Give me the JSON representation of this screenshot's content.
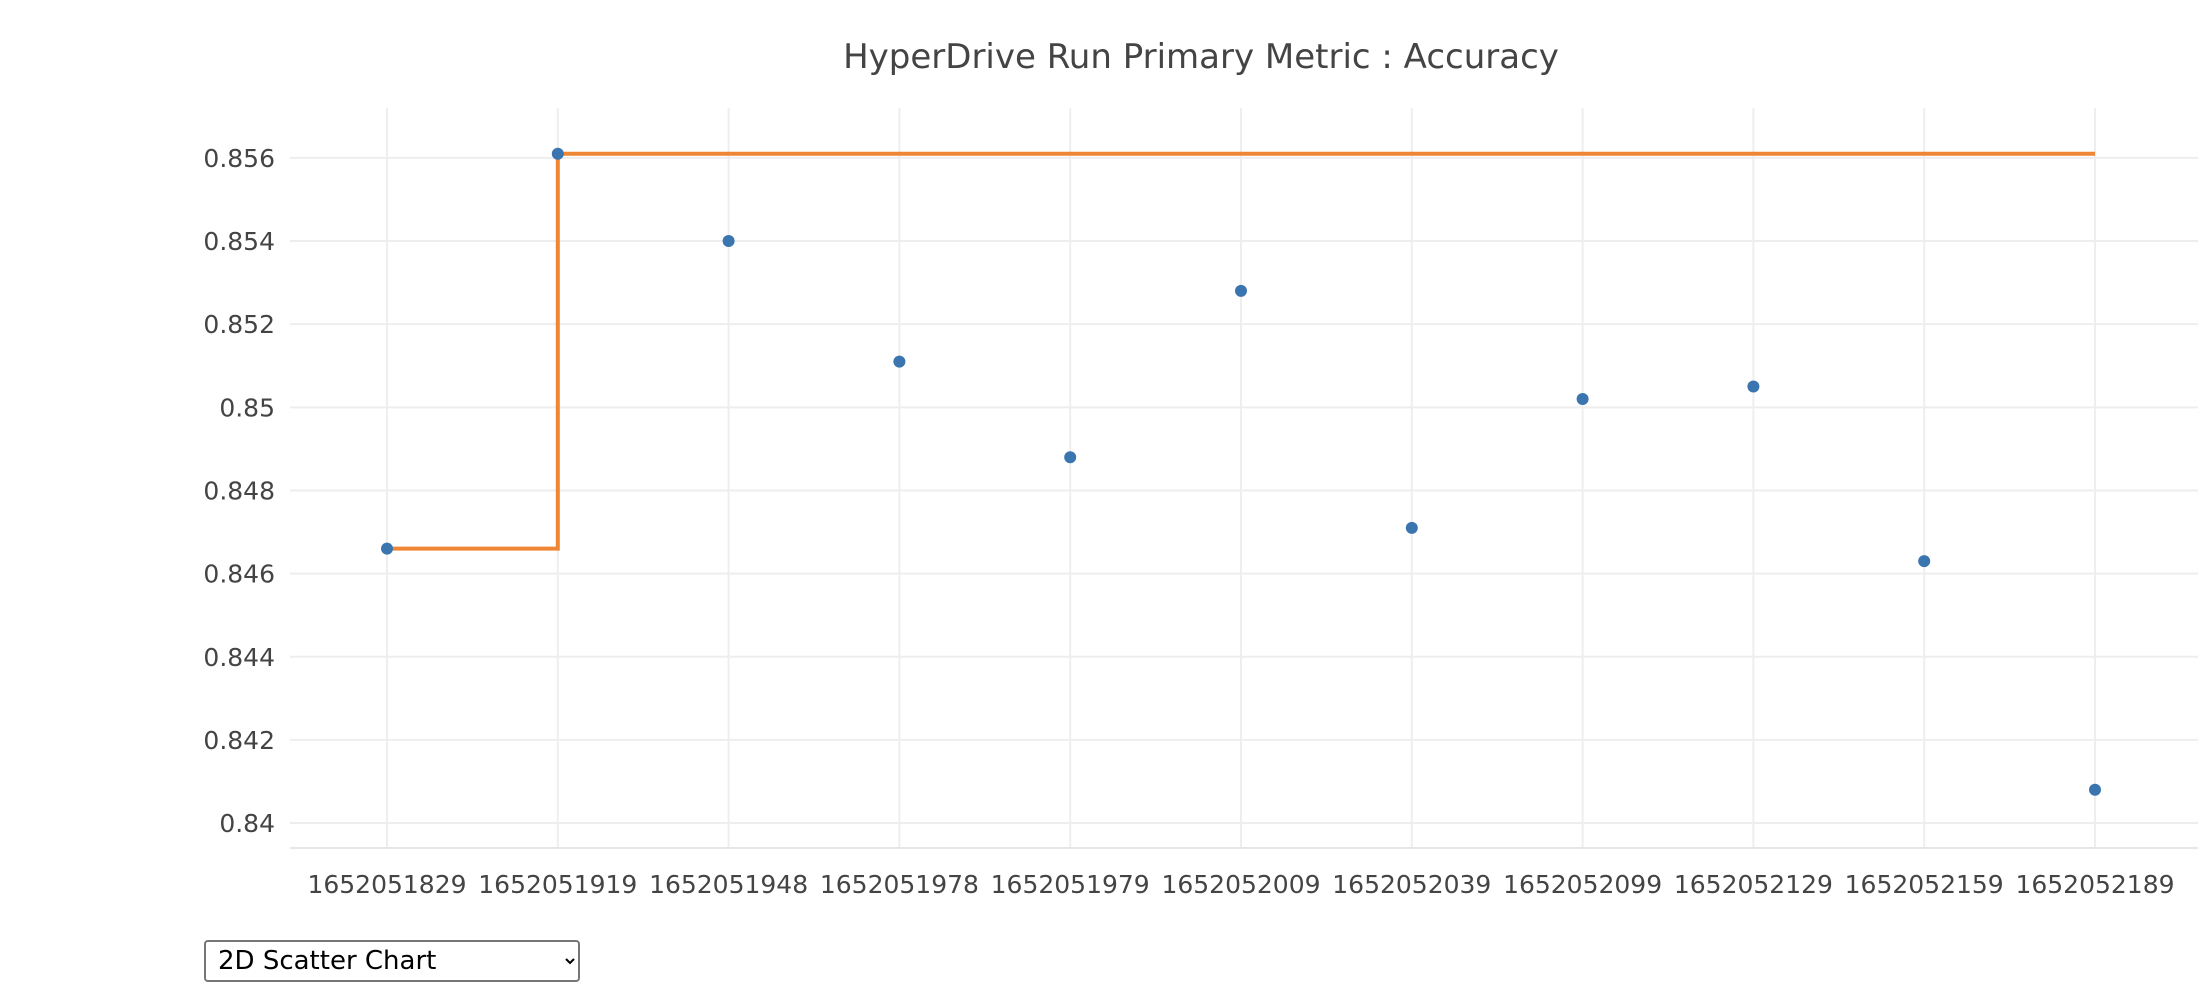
{
  "chart_data": {
    "type": "scatter",
    "title": "HyperDrive Run Primary Metric : Accuracy",
    "xlabel": "",
    "ylabel": "",
    "categories": [
      "1652051829",
      "1652051919",
      "1652051948",
      "1652051978",
      "1652051979",
      "1652052009",
      "1652052039",
      "1652052099",
      "1652052129",
      "1652052159",
      "1652052189"
    ],
    "ylim": [
      0.8394,
      0.8572
    ],
    "yticks": [
      0.84,
      0.842,
      0.844,
      0.846,
      0.848,
      0.85,
      0.852,
      0.854,
      0.856
    ],
    "ytick_labels": [
      "0.84",
      "0.842",
      "0.844",
      "0.846",
      "0.848",
      "0.85",
      "0.852",
      "0.854",
      "0.856"
    ],
    "grid": true,
    "series": [
      {
        "kind": "scatter",
        "color": "#3b75af",
        "values": [
          0.8466,
          0.8561,
          0.854,
          0.8511,
          0.8488,
          0.8528,
          0.8471,
          0.8502,
          0.8505,
          0.8463,
          0.8408
        ]
      },
      {
        "kind": "step-line",
        "color": "#ef8636",
        "values": [
          0.8466,
          0.8561,
          0.8561,
          0.8561,
          0.8561,
          0.8561,
          0.8561,
          0.8561,
          0.8561,
          0.8561,
          0.8561
        ]
      }
    ]
  },
  "controls": {
    "chart_type": {
      "selected": "2D Scatter Chart",
      "options": [
        "2D Scatter Chart"
      ]
    }
  }
}
